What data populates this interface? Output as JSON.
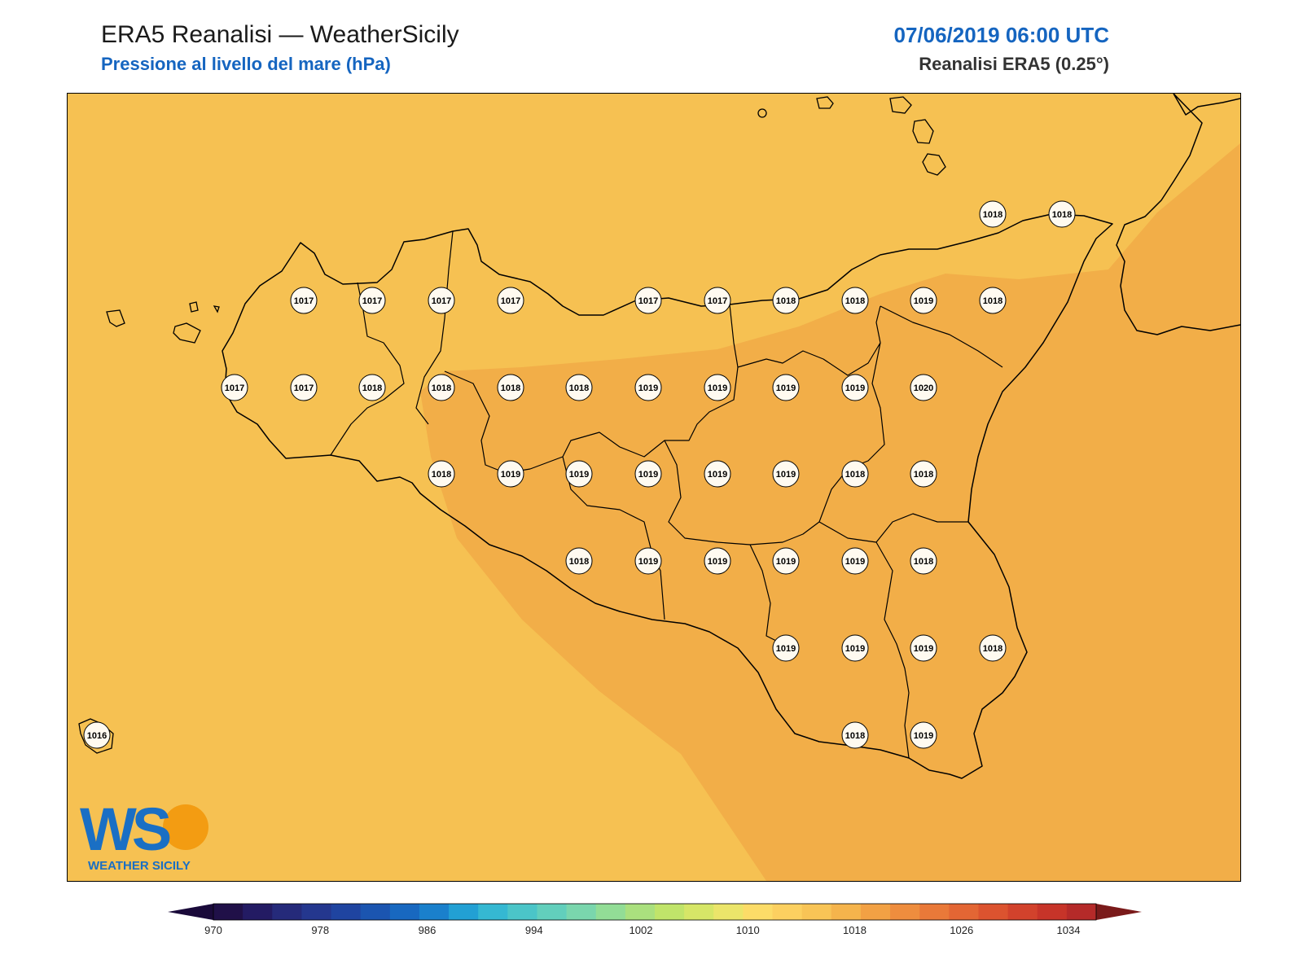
{
  "header": {
    "title": "ERA5 Reanalisi — WeatherSicily",
    "subtitle": "Pressione al livello del mare (hPa)",
    "datetime": "07/06/2019 06:00 UTC",
    "source": "Reanalisi ERA5 (0.25°)"
  },
  "logo": {
    "letters": "WS",
    "caption": "WEATHER SICILY"
  },
  "colors": {
    "field_low": "#f6c152",
    "field_high": "#f2ae48",
    "coast": "#000000",
    "title_blue": "#1565c0"
  },
  "colorbar": {
    "tick_labels": [
      "970",
      "978",
      "986",
      "994",
      "1002",
      "1010",
      "1018",
      "1026",
      "1034"
    ],
    "colors": [
      "#201048",
      "#231b63",
      "#252a7a",
      "#24378e",
      "#1f44a0",
      "#1b55b0",
      "#1868c0",
      "#1a80cc",
      "#22a0d4",
      "#35b8d2",
      "#4bc5c8",
      "#62cfbc",
      "#7ad6ad",
      "#92dd96",
      "#aae07e",
      "#c0e46a",
      "#d6e667",
      "#ebe56a",
      "#fcdc68",
      "#fcd060",
      "#f8c456",
      "#f5b44c",
      "#f2a144",
      "#ee8d3e",
      "#e97939",
      "#e36634",
      "#dc532f",
      "#d2422c",
      "#c73429",
      "#b52a29"
    ],
    "under_color": "#1a0a3a",
    "over_color": "#7a1a1a"
  },
  "stations": [
    {
      "value": "1018"
    },
    {
      "value": "1018"
    },
    {
      "value": "1017"
    },
    {
      "value": "1017"
    },
    {
      "value": "1017"
    },
    {
      "value": "1017"
    },
    {
      "value": "1017"
    },
    {
      "value": "1017"
    },
    {
      "value": "1018"
    },
    {
      "value": "1018"
    },
    {
      "value": "1019"
    },
    {
      "value": "1018"
    },
    {
      "value": "1017"
    },
    {
      "value": "1017"
    },
    {
      "value": "1018"
    },
    {
      "value": "1018"
    },
    {
      "value": "1018"
    },
    {
      "value": "1018"
    },
    {
      "value": "1019"
    },
    {
      "value": "1019"
    },
    {
      "value": "1019"
    },
    {
      "value": "1019"
    },
    {
      "value": "1020"
    },
    {
      "value": "1018"
    },
    {
      "value": "1019"
    },
    {
      "value": "1019"
    },
    {
      "value": "1019"
    },
    {
      "value": "1019"
    },
    {
      "value": "1019"
    },
    {
      "value": "1018"
    },
    {
      "value": "1018"
    },
    {
      "value": "1018"
    },
    {
      "value": "1019"
    },
    {
      "value": "1019"
    },
    {
      "value": "1019"
    },
    {
      "value": "1019"
    },
    {
      "value": "1018"
    },
    {
      "value": "1019"
    },
    {
      "value": "1019"
    },
    {
      "value": "1019"
    },
    {
      "value": "1018"
    },
    {
      "value": "1016"
    },
    {
      "value": "1018"
    },
    {
      "value": "1019"
    }
  ]
}
